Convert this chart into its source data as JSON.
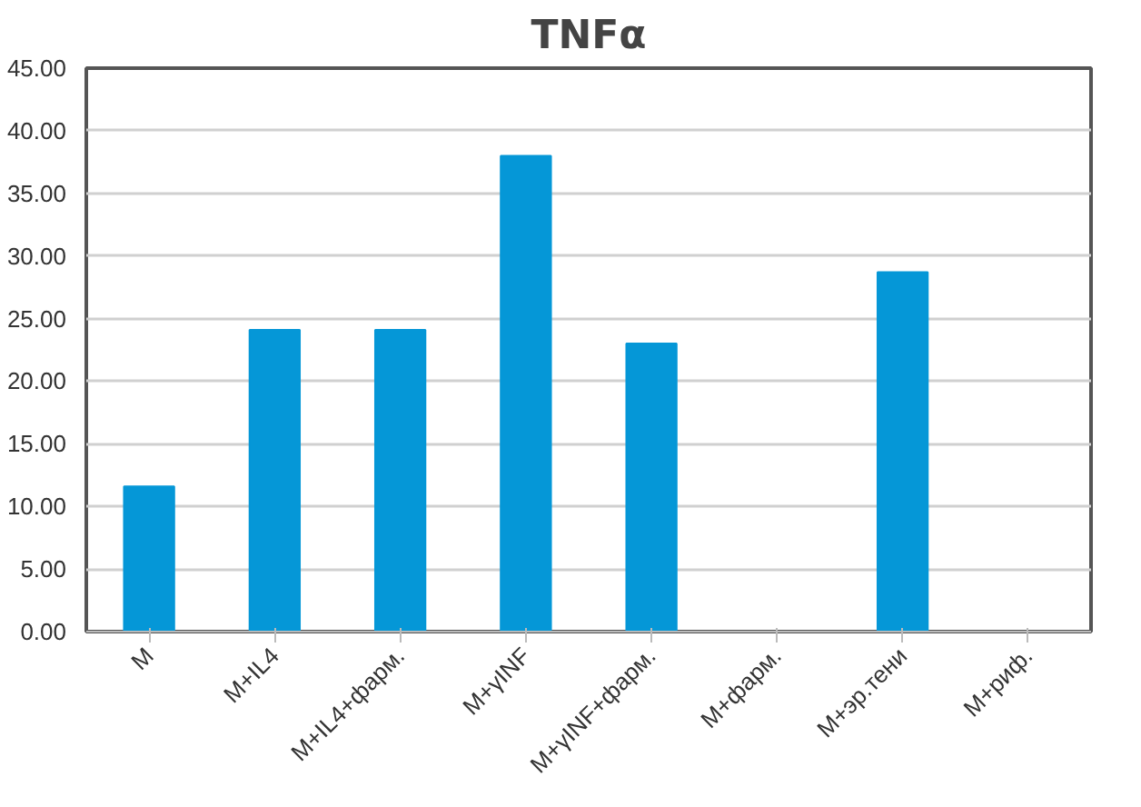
{
  "chart_data": {
    "type": "bar",
    "title": "TNFα",
    "categories": [
      "M",
      "M+IL4",
      "M+IL4+фарм.",
      "M+γINF",
      "M+γINF+фарм.",
      "M+фарм.",
      "M+эр.тени",
      "M+риф."
    ],
    "values": [
      11.6,
      24.1,
      24.1,
      38.0,
      23.0,
      null,
      28.7,
      null
    ],
    "color": "#0597d7",
    "ylim": [
      0,
      45
    ],
    "yticks": [
      {
        "value": 0,
        "label": "0.00"
      },
      {
        "value": 5,
        "label": "5.00"
      },
      {
        "value": 10,
        "label": "10.00"
      },
      {
        "value": 15,
        "label": "15.00"
      },
      {
        "value": 20,
        "label": "20.00"
      },
      {
        "value": 25,
        "label": "25.00"
      },
      {
        "value": 30,
        "label": "30.00"
      },
      {
        "value": 35,
        "label": "35.00"
      },
      {
        "value": 40,
        "label": "40.00"
      },
      {
        "value": 45,
        "label": "45.00"
      }
    ],
    "grid": "y"
  }
}
